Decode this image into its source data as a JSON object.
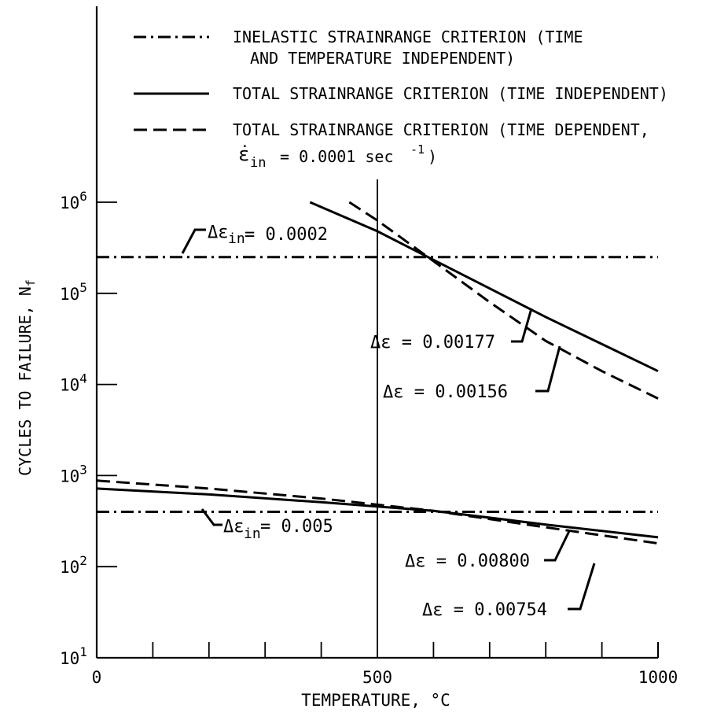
{
  "chart_data": {
    "type": "line",
    "xlabel": "TEMPERATURE, °C",
    "ylabel": "CYCLES TO FAILURE, N",
    "ylabel_sub": "f",
    "x_ticks": [
      {
        "value": 0,
        "label": "0"
      },
      {
        "value": 500,
        "label": "500"
      },
      {
        "value": 1000,
        "label": "1000"
      }
    ],
    "x_minor_ticks": [
      100,
      200,
      300,
      400,
      600,
      700,
      800,
      900
    ],
    "y_scale": "log",
    "y_ticks": [
      {
        "value": 10,
        "base": "10",
        "exp": "1"
      },
      {
        "value": 100,
        "base": "10",
        "exp": "2"
      },
      {
        "value": 1000,
        "base": "10",
        "exp": "3"
      },
      {
        "value": 10000,
        "base": "10",
        "exp": "4"
      },
      {
        "value": 100000,
        "base": "10",
        "exp": "5"
      },
      {
        "value": 1000000,
        "base": "10",
        "exp": "6"
      }
    ],
    "xlim": [
      0,
      1000
    ],
    "ylim": [
      10,
      10000000
    ],
    "reference_line_x": 500,
    "legend": [
      {
        "style": "dashdot",
        "lines": [
          "INELASTIC STRAINRANGE CRITERION (TIME",
          "AND TEMPERATURE INDEPENDENT)"
        ]
      },
      {
        "style": "solid",
        "lines": [
          "TOTAL STRAINRANGE CRITERION (TIME INDEPENDENT)"
        ]
      },
      {
        "style": "dashed",
        "lines": [
          "TOTAL STRAINRANGE CRITERION (TIME DEPENDENT,"
        ],
        "rate_label": "= 0.0001  sec",
        "rate_sub": "in",
        "rate_exp": "-1",
        "rate_close": ")"
      }
    ],
    "series": [
      {
        "style": "dashdot",
        "x": [
          0,
          1000
        ],
        "y": [
          250000,
          250000
        ]
      },
      {
        "style": "dashdot",
        "x": [
          0,
          1000
        ],
        "y": [
          400,
          400
        ]
      },
      {
        "style": "solid",
        "x": [
          380,
          500,
          590,
          800,
          1000
        ],
        "y": [
          1000000,
          480000,
          250000,
          55000,
          14000
        ]
      },
      {
        "style": "dashed",
        "x": [
          450,
          500,
          590,
          700,
          800,
          900,
          1000
        ],
        "y": [
          1000000,
          630000,
          250000,
          80000,
          30000,
          14000,
          7000
        ]
      },
      {
        "style": "solid",
        "x": [
          0,
          200,
          400,
          600,
          800,
          1000
        ],
        "y": [
          720,
          620,
          510,
          410,
          290,
          210
        ]
      },
      {
        "style": "dashed",
        "x": [
          0,
          200,
          400,
          600,
          800,
          1000
        ],
        "y": [
          880,
          720,
          560,
          410,
          270,
          180
        ]
      }
    ],
    "annotations": [
      {
        "id": "ineq-high",
        "prefix": "Δε",
        "sub": "in",
        "value": "= 0.0002"
      },
      {
        "id": "ineq-low",
        "prefix": "Δε",
        "sub": "in",
        "value": " = 0.005"
      },
      {
        "id": "tot-177",
        "text": "Δε = 0.00177"
      },
      {
        "id": "tot-156",
        "text": "Δε = 0.00156"
      },
      {
        "id": "tot-800",
        "text": "Δε = 0.00800"
      },
      {
        "id": "tot-754",
        "text": "Δε = 0.00754"
      }
    ]
  }
}
